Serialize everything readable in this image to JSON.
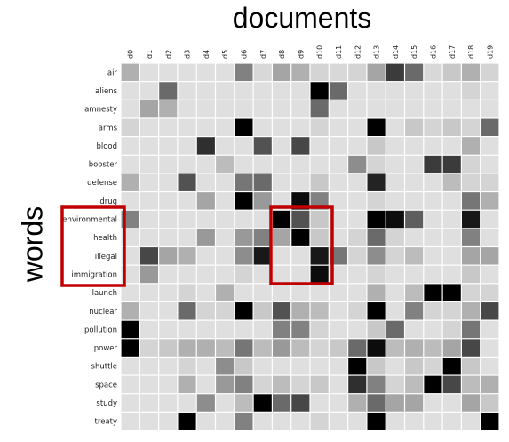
{
  "chart_data": {
    "type": "heatmap",
    "title": "documents",
    "ylabel": "words",
    "x": [
      "d0",
      "d1",
      "d2",
      "d3",
      "d4",
      "d5",
      "d6",
      "d7",
      "d8",
      "d9",
      "d10",
      "d11",
      "d12",
      "d13",
      "d14",
      "d15",
      "d16",
      "d17",
      "d18",
      "d19"
    ],
    "y": [
      "air",
      "aliens",
      "amnesty",
      "arms",
      "blood",
      "booster",
      "defense",
      "drug",
      "environmental",
      "health",
      "illegal",
      "immigration",
      "launch",
      "nuclear",
      "pollution",
      "power",
      "shuttle",
      "space",
      "study",
      "treaty"
    ],
    "colormap": "grayscale (white = low, black = high)",
    "values": [
      [
        0.25,
        0.05,
        0.05,
        0.05,
        0.05,
        0.05,
        0.45,
        0.08,
        0.3,
        0.25,
        0.1,
        0.08,
        0.1,
        0.3,
        0.75,
        0.55,
        0.08,
        0.15,
        0.25,
        0.1
      ],
      [
        0.05,
        0.05,
        0.55,
        0.05,
        0.05,
        0.05,
        0.05,
        0.05,
        0.05,
        0.05,
        1.0,
        0.55,
        0.05,
        0.05,
        0.05,
        0.05,
        0.05,
        0.05,
        0.1,
        0.05
      ],
      [
        0.05,
        0.3,
        0.25,
        0.05,
        0.05,
        0.05,
        0.05,
        0.05,
        0.05,
        0.05,
        0.55,
        0.05,
        0.05,
        0.05,
        0.05,
        0.05,
        0.05,
        0.05,
        0.05,
        0.05
      ],
      [
        0.1,
        0.05,
        0.05,
        0.05,
        0.05,
        0.05,
        1.0,
        0.05,
        0.05,
        0.05,
        0.1,
        0.05,
        0.05,
        1.0,
        0.05,
        0.15,
        0.1,
        0.15,
        0.1,
        0.55
      ],
      [
        0.05,
        0.05,
        0.05,
        0.05,
        0.8,
        0.05,
        0.05,
        0.65,
        0.05,
        0.7,
        0.05,
        0.05,
        0.05,
        0.15,
        0.05,
        0.05,
        0.05,
        0.05,
        0.25,
        0.05
      ],
      [
        0.05,
        0.05,
        0.05,
        0.05,
        0.05,
        0.2,
        0.05,
        0.05,
        0.05,
        0.05,
        0.05,
        0.05,
        0.4,
        0.1,
        0.05,
        0.05,
        0.75,
        0.75,
        0.1,
        0.05
      ],
      [
        0.25,
        0.05,
        0.05,
        0.65,
        0.05,
        0.05,
        0.5,
        0.55,
        0.05,
        0.05,
        0.15,
        0.05,
        0.05,
        0.85,
        0.05,
        0.05,
        0.05,
        0.2,
        0.1,
        0.1
      ],
      [
        0.05,
        0.05,
        0.05,
        0.05,
        0.3,
        0.05,
        1.0,
        0.35,
        0.05,
        0.95,
        0.45,
        0.05,
        0.05,
        0.1,
        0.05,
        0.05,
        0.05,
        0.05,
        0.5,
        0.25
      ],
      [
        0.45,
        0.05,
        0.05,
        0.05,
        0.05,
        0.05,
        0.05,
        0.05,
        1.0,
        0.65,
        0.15,
        0.05,
        0.05,
        1.0,
        0.95,
        0.6,
        0.05,
        0.05,
        0.9,
        0.05
      ],
      [
        0.05,
        0.05,
        0.05,
        0.05,
        0.35,
        0.05,
        0.35,
        0.45,
        0.3,
        1.0,
        0.15,
        0.05,
        0.1,
        0.55,
        0.1,
        0.05,
        0.05,
        0.05,
        0.45,
        0.05
      ],
      [
        0.05,
        0.7,
        0.3,
        0.25,
        0.05,
        0.05,
        0.4,
        0.9,
        0.05,
        0.05,
        0.9,
        0.5,
        0.1,
        0.4,
        0.1,
        0.2,
        0.05,
        0.05,
        0.3,
        0.3
      ],
      [
        0.05,
        0.35,
        0.05,
        0.05,
        0.05,
        0.05,
        0.1,
        0.05,
        0.05,
        0.05,
        0.95,
        0.05,
        0.05,
        0.1,
        0.05,
        0.05,
        0.05,
        0.05,
        0.15,
        0.05
      ],
      [
        0.05,
        0.05,
        0.05,
        0.1,
        0.05,
        0.25,
        0.05,
        0.05,
        0.05,
        0.05,
        0.05,
        0.05,
        0.05,
        0.25,
        0.05,
        0.2,
        1.0,
        1.0,
        0.1,
        0.1
      ],
      [
        0.25,
        0.05,
        0.05,
        0.55,
        0.1,
        0.1,
        1.0,
        0.15,
        0.65,
        0.25,
        0.2,
        0.05,
        0.1,
        1.0,
        0.05,
        0.45,
        0.1,
        0.1,
        0.25,
        0.7
      ],
      [
        1.0,
        0.05,
        0.05,
        0.05,
        0.05,
        0.05,
        0.05,
        0.05,
        0.45,
        0.45,
        0.1,
        0.05,
        0.05,
        0.15,
        0.55,
        0.05,
        0.05,
        0.1,
        0.5,
        0.05
      ],
      [
        1.0,
        0.1,
        0.15,
        0.25,
        0.25,
        0.2,
        0.5,
        0.2,
        0.35,
        0.2,
        0.1,
        0.15,
        0.55,
        0.95,
        0.2,
        0.25,
        0.2,
        0.3,
        0.7,
        0.05
      ],
      [
        0.05,
        0.05,
        0.05,
        0.1,
        0.05,
        0.4,
        0.15,
        0.05,
        0.05,
        0.05,
        0.05,
        0.05,
        1.0,
        0.15,
        0.05,
        0.15,
        0.1,
        1.0,
        0.15,
        0.05
      ],
      [
        0.05,
        0.05,
        0.05,
        0.25,
        0.05,
        0.35,
        0.45,
        0.1,
        0.2,
        0.1,
        0.15,
        0.05,
        0.8,
        0.45,
        0.1,
        0.2,
        1.0,
        0.7,
        0.2,
        0.25
      ],
      [
        0.05,
        0.05,
        0.05,
        0.05,
        0.4,
        0.05,
        0.2,
        1.0,
        0.55,
        0.7,
        0.05,
        0.05,
        0.25,
        0.55,
        0.3,
        0.3,
        0.05,
        0.05,
        0.3,
        0.15
      ],
      [
        0.05,
        0.05,
        0.05,
        1.0,
        0.05,
        0.05,
        0.45,
        0.05,
        0.05,
        0.05,
        0.1,
        0.05,
        0.05,
        1.0,
        0.05,
        0.05,
        0.05,
        0.05,
        0.05,
        1.0
      ]
    ],
    "highlights": [
      {
        "rows": [
          "environmental",
          "illegal",
          "immigration",
          "health"
        ],
        "cols": [],
        "color": "#c00000"
      },
      {
        "rows": [
          "environmental",
          "health",
          "illegal",
          "immigration"
        ],
        "cols": [
          "d8",
          "d9",
          "d10"
        ],
        "color": "#c00000"
      }
    ]
  }
}
